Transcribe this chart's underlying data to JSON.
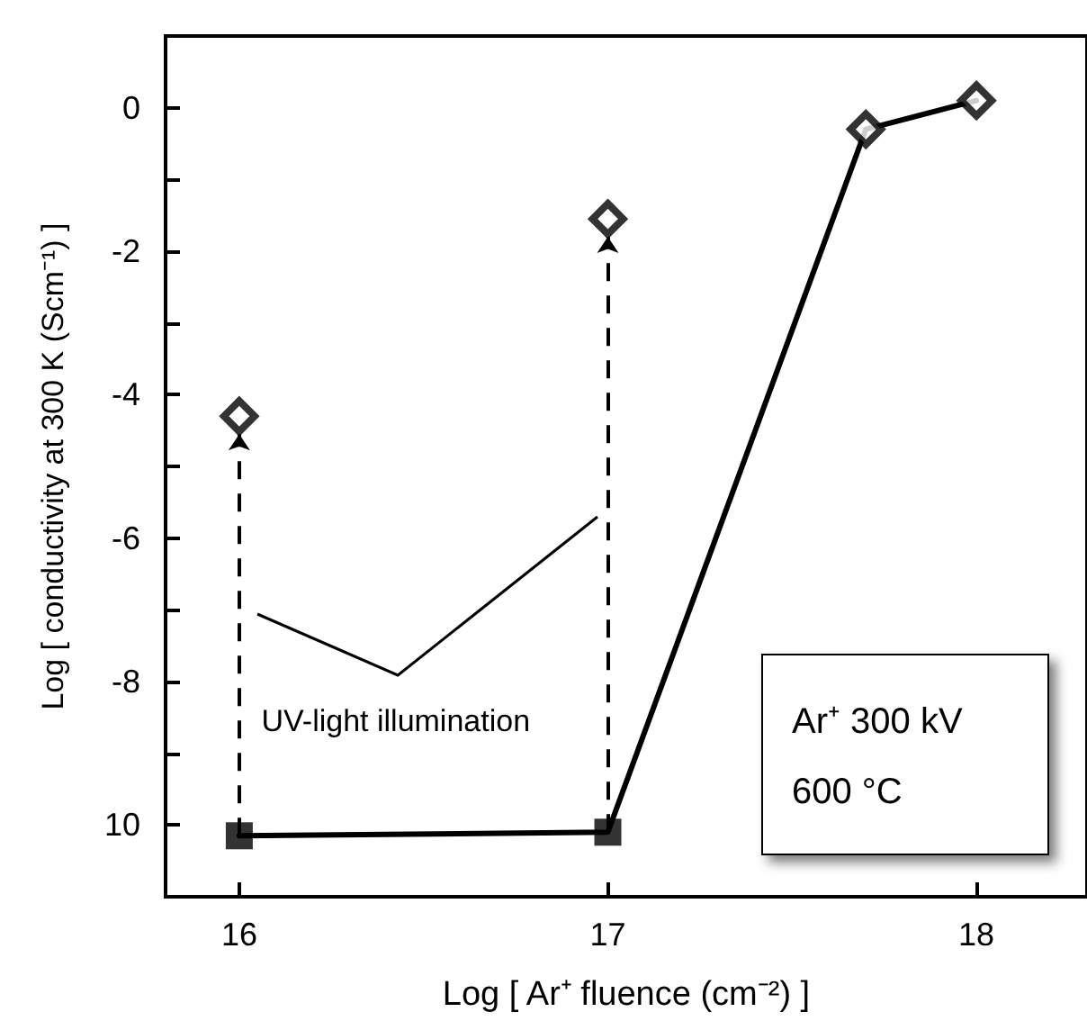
{
  "chart_data": {
    "type": "line",
    "xlabel": "Log [ Ar⁺ fluence (cm⁻²) ]",
    "ylabel": "Log [ conductivity at 300 K (Scm⁻¹) ]",
    "xlim": [
      15.8,
      18.3
    ],
    "xticks": [
      16,
      17,
      18
    ],
    "ylim": [
      -11,
      1
    ],
    "yticks": [
      0,
      {
        "value": -1,
        "label": null
      },
      -2,
      {
        "value": -3,
        "label": null
      },
      -4,
      {
        "value": -5,
        "label": null
      },
      -6,
      {
        "value": -7,
        "label": null
      },
      -8,
      {
        "value": -9,
        "label": null
      },
      {
        "value": -10,
        "label": "10"
      }
    ],
    "grid": false,
    "series": [
      {
        "type": "line",
        "marker": "none",
        "line_style": "solid",
        "color": "#000000",
        "x": [
          16,
          17,
          17.7,
          18
        ],
        "values": [
          -10.15,
          -10.1,
          -0.3,
          0.1
        ]
      },
      {
        "type": "scatter",
        "marker": "square",
        "color": "#000000",
        "x": [
          16,
          17
        ],
        "values": [
          -10.15,
          -10.1
        ]
      },
      {
        "type": "scatter",
        "marker": "diamond",
        "color": "#000000",
        "x": [
          16,
          17,
          17.7,
          18
        ],
        "values": [
          -4.3,
          -1.55,
          -0.3,
          0.1
        ]
      }
    ],
    "annotations": [
      "UV-light illumination",
      "Ar⁺ 300 kV",
      "600 °C"
    ]
  }
}
